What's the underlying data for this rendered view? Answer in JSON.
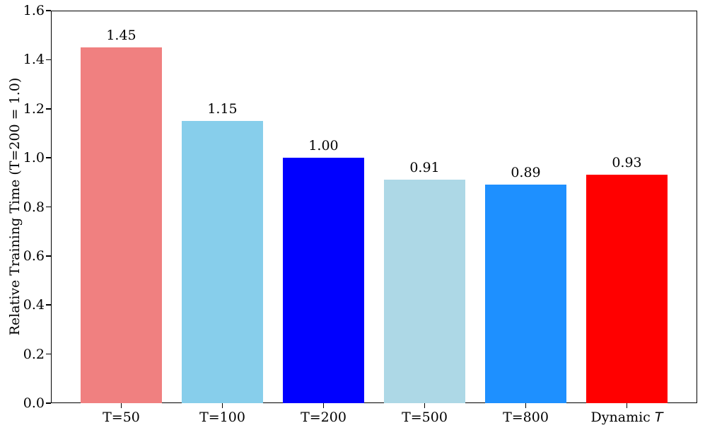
{
  "chart_data": {
    "type": "bar",
    "title": "",
    "xlabel": "",
    "ylabel": "Relative Training Time (T=200 = 1.0)",
    "categories": [
      "T=50",
      "T=100",
      "T=200",
      "T=500",
      "T=800",
      "Dynamic T"
    ],
    "category_rich": [
      {
        "text": "T=50",
        "math_suffix": ""
      },
      {
        "text": "T=100",
        "math_suffix": ""
      },
      {
        "text": "T=200",
        "math_suffix": ""
      },
      {
        "text": "T=500",
        "math_suffix": ""
      },
      {
        "text": "T=800",
        "math_suffix": ""
      },
      {
        "text": "Dynamic ",
        "math_suffix": "T"
      }
    ],
    "values": [
      1.45,
      1.15,
      1.0,
      0.91,
      0.89,
      0.93
    ],
    "value_labels": [
      "1.45",
      "1.15",
      "1.00",
      "0.91",
      "0.89",
      "0.93"
    ],
    "bar_colors": [
      "#F08080",
      "#87CEEB",
      "#0000FF",
      "#ADD8E6",
      "#1E90FF",
      "#FF0000"
    ],
    "ylim": [
      0.0,
      1.6
    ],
    "yticks": [
      0.0,
      0.2,
      0.4,
      0.6,
      0.8,
      1.0,
      1.2,
      1.4,
      1.6
    ],
    "ytick_labels": [
      "0.0",
      "0.2",
      "0.4",
      "0.6",
      "0.8",
      "1.0",
      "1.2",
      "1.4",
      "1.6"
    ],
    "grid": false,
    "legend": null,
    "background_color": "#FFFFFF",
    "axis_color": "#000000",
    "text_color": "#000000"
  }
}
